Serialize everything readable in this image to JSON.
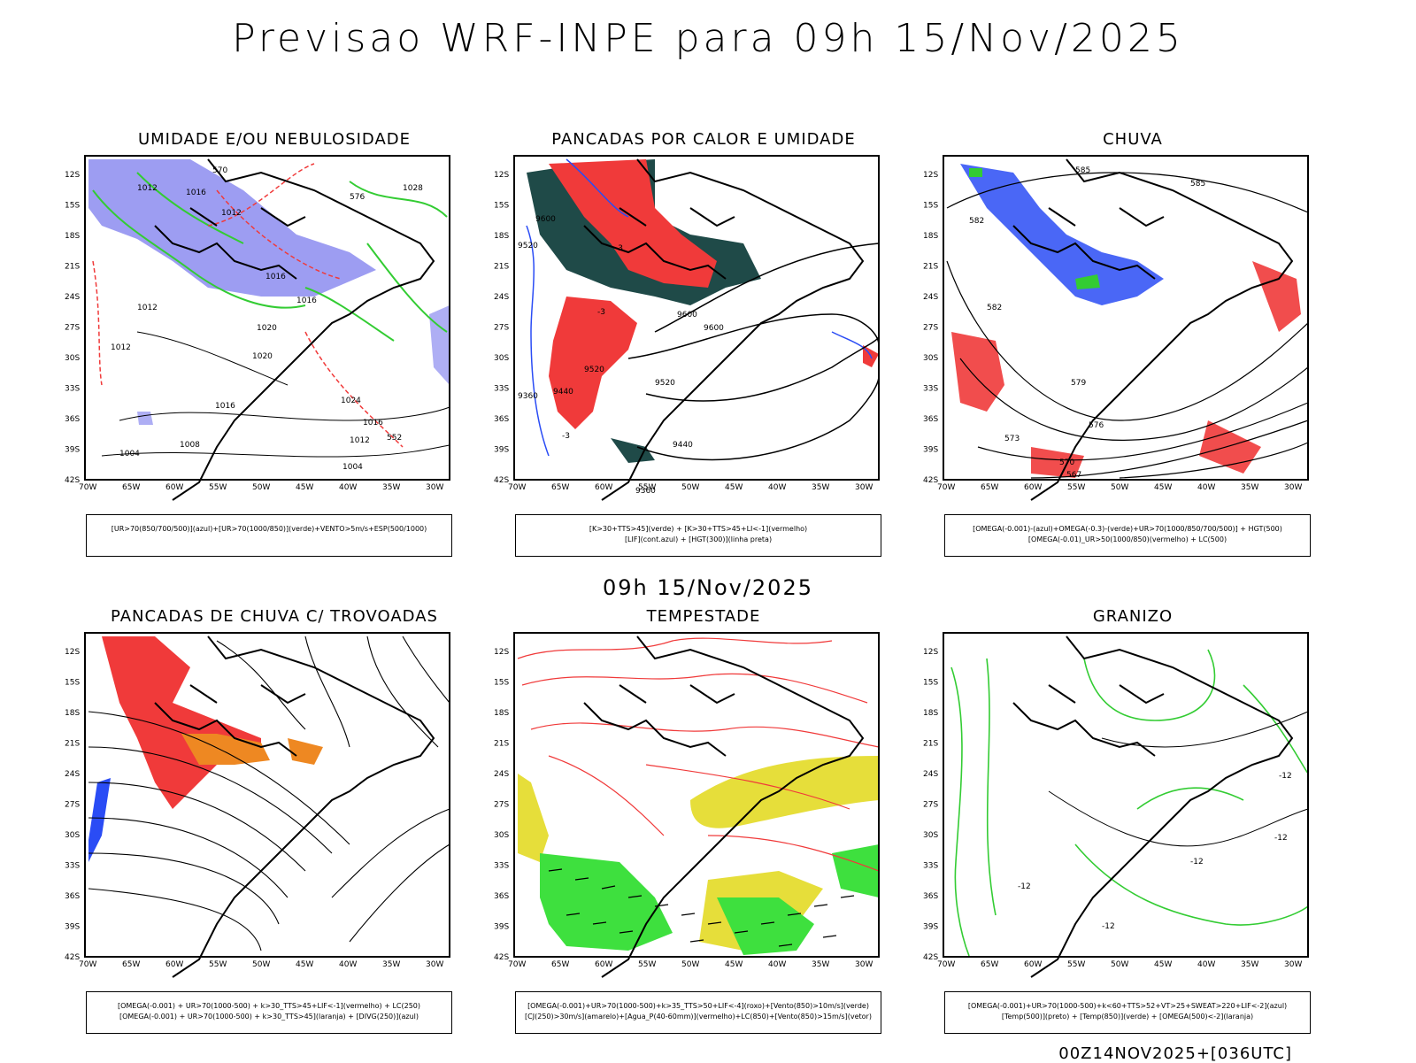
{
  "header": {
    "title": "Previsao WRF-INPE  para 09h 15/Nov/2025"
  },
  "middle_title": "09h 15/Nov/2025",
  "footer": "00Z14NOV2025+[036UTC]",
  "axes": {
    "lat_ticks": [
      "12S",
      "15S",
      "18S",
      "21S",
      "24S",
      "27S",
      "30S",
      "33S",
      "36S",
      "39S",
      "42S"
    ],
    "lon_ticks": [
      "70W",
      "65W",
      "60W",
      "55W",
      "50W",
      "45W",
      "40W",
      "35W",
      "30W"
    ]
  },
  "panels": [
    {
      "title": "UMIDADE E/OU NEBULOSIDADE",
      "legend": [
        "[UR>70(850/700/500)](azul)+[UR>70(1000/850)](verde)+VENTO>5m/s+ESP(500/1000)"
      ],
      "contour_labels": [
        "1012",
        "1016",
        "1012",
        "1016",
        "1012",
        "1020",
        "1016",
        "1012",
        "1020",
        "1024",
        "1016",
        "1008",
        "1004",
        "1028",
        "1016",
        "1012",
        "1004",
        "552",
        "570",
        "576"
      ]
    },
    {
      "title": "PANCADAS POR CALOR E UMIDADE",
      "legend": [
        "[K>30+TTS>45](verde) + [K>30+TTS>45+LI<-1](vermelho)",
        "[LIF](cont.azul) + [HGT(300)](linha preta)"
      ],
      "contour_labels": [
        "9600",
        "9520",
        "9600",
        "9600",
        "9520",
        "9520",
        "9440",
        "9360",
        "9440",
        "9360",
        "-3",
        "-3",
        "-3"
      ]
    },
    {
      "title": "CHUVA",
      "legend": [
        "[OMEGA(-0.001)-(azul)+OMEGA(-0.3)-(verde)+UR>70(1000/850/700/500)] + HGT(500)",
        "[OMEGA(-0.01)_UR>50(1000/850)(vermelho) + LC(500)"
      ],
      "contour_labels": [
        "585",
        "585",
        "582",
        "582",
        "579",
        "576",
        "573",
        "570",
        "567"
      ]
    },
    {
      "title": "PANCADAS DE CHUVA C/ TROVOADAS",
      "legend": [
        "[OMEGA(-0.001) + UR>70(1000-500) + k>30_TTS>45+LIF<-1](vermelho) + LC(250)",
        "[OMEGA(-0.001) + UR>70(1000-500) + k>30_TTS>45](laranja) + [DIVG(250)](azul)"
      ],
      "contour_labels": []
    },
    {
      "title": "TEMPESTADE",
      "legend": [
        "[OMEGA(-0.001)+UR>70(1000-500)+k>35_TTS>50+LIF<-4](roxo)+[Vento(850)>10m/s](verde)",
        "[CJ(250)>30m/s](amarelo)+[Agua_P(40-60mm)](vermelho)+LC(850)+[Vento(850)>15m/s](vetor)"
      ],
      "contour_labels": []
    },
    {
      "title": "GRANIZO",
      "legend": [
        "[OMEGA(-0.001)+UR>70(1000-500)+k<60+TTS>52+VT>25+SWEAT>220+LIF<-2](azul)",
        "[Temp(500)](preto) + [Temp(850)](verde) + [OMEGA(500)<-2](laranja)"
      ],
      "contour_labels": [
        "-12",
        "-12",
        "-12",
        "-12",
        "-12"
      ]
    }
  ],
  "colors": {
    "blue_fill": "#8c8cf0",
    "blue": "#2a4cf5",
    "green": "#33cc33",
    "red": "#f03a3a",
    "dark_teal": "#1f4a48",
    "orange": "#ee8822",
    "yellow": "#e6de3a",
    "bright_green": "#3ee03e"
  }
}
